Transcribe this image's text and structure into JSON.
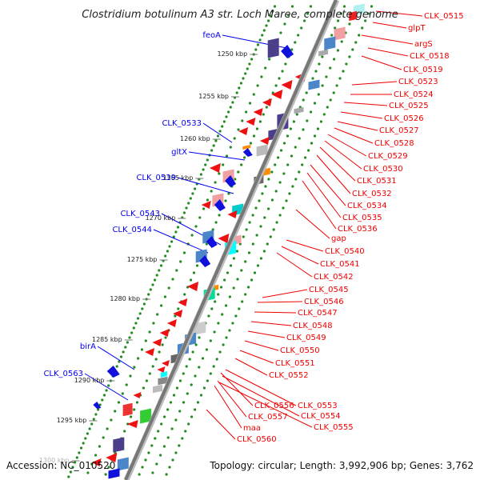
{
  "title": "Clostridium botulinum A3 str. Loch Maree, complete genome",
  "footer": {
    "accession": "Accession: NC_010520",
    "topology": "Topology: circular; Length: 3,992,906 bp; Genes: 3,762"
  },
  "colors": {
    "forward_label": "#0000ee",
    "reverse_label": "#ee0000",
    "backbone": "#888888",
    "ticks": "#228b22"
  },
  "ticks": [
    "1250 kbp",
    "1255 kbp",
    "1260 kbp",
    "1265 kbp",
    "1270 kbp",
    "1275 kbp",
    "1280 kbp",
    "1285 kbp",
    "1290 kbp",
    "1295 kbp",
    "1300 kbp"
  ],
  "left_labels": [
    "feoA",
    "CLK_0533",
    "gltX",
    "CLK_0539",
    "CLK_0543",
    "CLK_0544",
    "birA",
    "CLK_0563"
  ],
  "right_labels": [
    "CLK_0515",
    "glpT",
    "argS",
    "CLK_0518",
    "CLK_0519",
    "CLK_0523",
    "CLK_0524",
    "CLK_0525",
    "CLK_0526",
    "CLK_0527",
    "CLK_0528",
    "CLK_0529",
    "CLK_0530",
    "CLK_0531",
    "CLK_0532",
    "CLK_0534",
    "CLK_0535",
    "CLK_0536",
    "gap",
    "CLK_0540",
    "CLK_0541",
    "CLK_0542",
    "CLK_0545",
    "CLK_0546",
    "CLK_0547",
    "CLK_0548",
    "CLK_0549",
    "CLK_0550",
    "CLK_0551",
    "CLK_0552",
    "CLK_0553",
    "CLK_0554",
    "CLK_0555",
    "CLK_0556",
    "CLK_0557",
    "maa",
    "CLK_0560"
  ]
}
